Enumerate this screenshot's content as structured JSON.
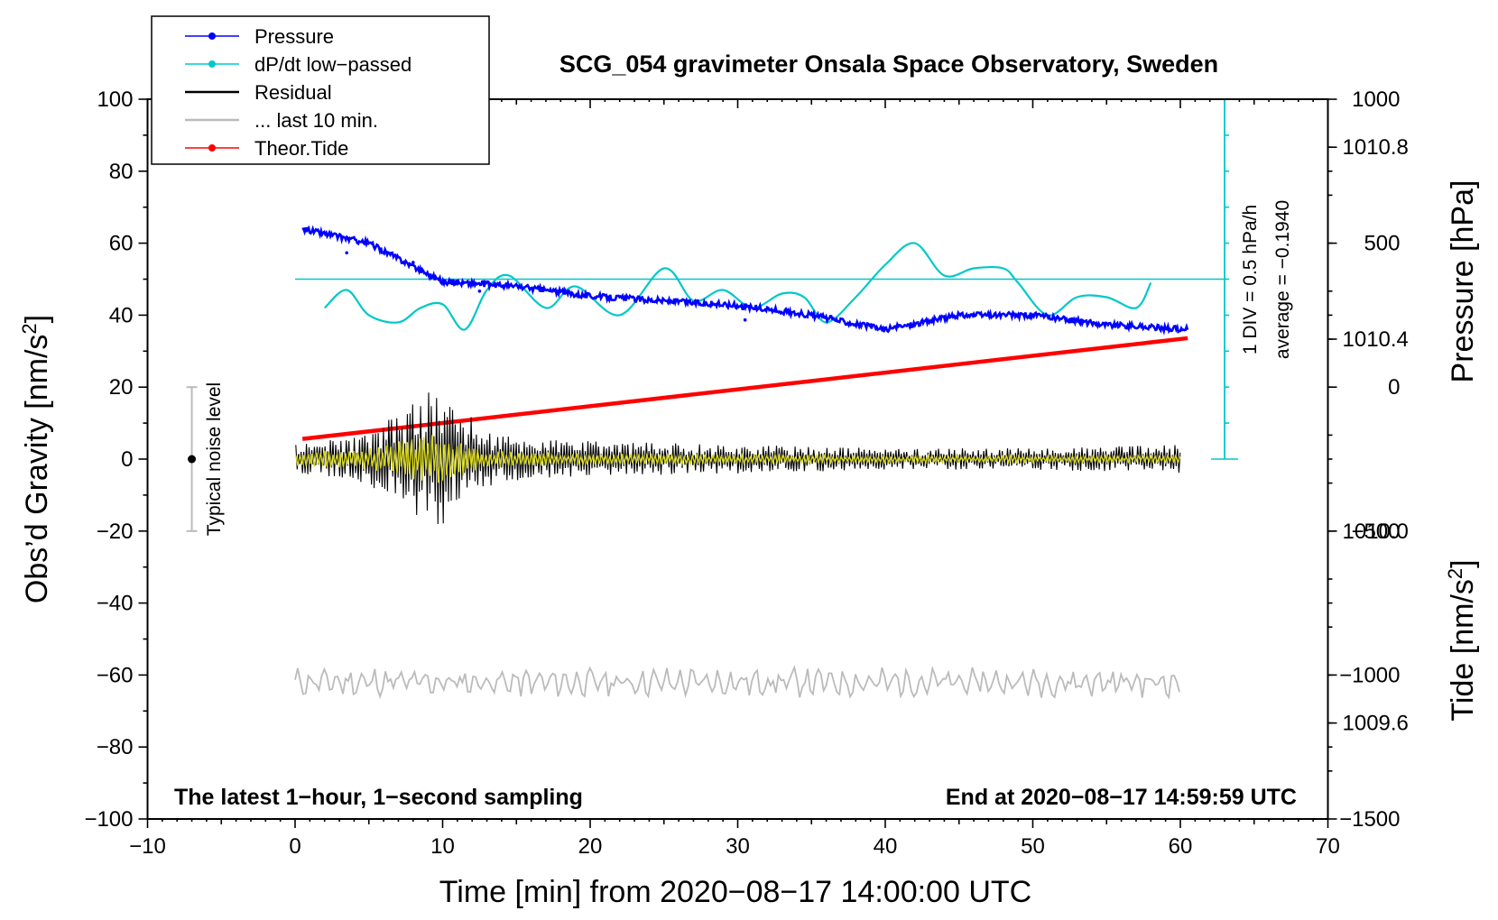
{
  "chart_data": {
    "type": "line",
    "title": "SCG_054 gravimeter Onsala Space Observatory, Sweden",
    "xlabel": "Time [min] from 2020−08−17 14:00:00 UTC",
    "ylabel_left": "Obs’d Gravity [nm/s",
    "ylabel_left_sup": "2",
    "ylabel_left_end": "]",
    "ylabel_right_pressure": "Pressure [hPa]",
    "ylabel_right_tide": "Tide [nm/s",
    "ylabel_right_tide_sup": "2",
    "ylabel_right_tide_end": "]",
    "xlim": [
      -10,
      70
    ],
    "ylim": [
      -100,
      100
    ],
    "x_ticks": [
      "−10",
      "0",
      "10",
      "20",
      "30",
      "40",
      "50",
      "60",
      "70"
    ],
    "y_ticks_left": [
      "100",
      "80",
      "60",
      "40",
      "20",
      "0",
      "−20",
      "−40",
      "−60",
      "−80",
      "−100"
    ],
    "pressure_axis": {
      "ylim": [
        1009.4,
        1010.9
      ],
      "ticks": [
        "1010.8",
        "1010.4",
        "1010.0",
        "1009.6"
      ]
    },
    "tide_axis": {
      "ylim": [
        -1500,
        1000
      ],
      "ticks": [
        "1000",
        "500",
        "0",
        "−500",
        "−1000",
        "−1500"
      ]
    },
    "legend": [
      {
        "name": "Pressure",
        "color": "#0000ff",
        "marker": true
      },
      {
        "name": "dP/dt low−passed",
        "color": "#00c8c8",
        "marker": true
      },
      {
        "name": "Residual",
        "color": "#000000",
        "marker": false
      },
      {
        "name": "... last 10 min.",
        "color": "#bbbbbb",
        "marker": false
      },
      {
        "name": "Theor.Tide",
        "color": "#ff0000",
        "marker": true
      }
    ],
    "series": [
      {
        "name": "Pressure",
        "axis": "pressure",
        "color": "#0000ff",
        "x": [
          0.5,
          5,
          10,
          15,
          20,
          25,
          30,
          35,
          40,
          45,
          50,
          55,
          60.5
        ],
        "values": [
          1010.63,
          1010.6,
          1010.52,
          1010.51,
          1010.49,
          1010.48,
          1010.47,
          1010.45,
          1010.42,
          1010.45,
          1010.45,
          1010.43,
          1010.42
        ]
      },
      {
        "name": "dP/dt low−passed",
        "axis": "gravity_scaled",
        "color": "#00c8c8",
        "x": [
          2,
          3.5,
          5,
          7,
          8.5,
          10,
          11.5,
          13,
          14.5,
          17,
          19,
          22,
          25,
          27,
          29,
          31,
          33,
          34.5,
          36,
          38,
          40,
          42,
          44,
          46,
          48,
          49,
          51,
          53,
          55,
          57,
          58
        ],
        "values": [
          42,
          47,
          40,
          38,
          42,
          43,
          36,
          47,
          51,
          42,
          48,
          40,
          53,
          44,
          47,
          42,
          46,
          45,
          38,
          45,
          54,
          60,
          51,
          53,
          53,
          49,
          40,
          45,
          45,
          42,
          49
        ]
      },
      {
        "name": "Residual",
        "axis": "gravity",
        "color": "#000000",
        "x": [
          0,
          5,
          8,
          9.5,
          11,
          13,
          15,
          20,
          30,
          40,
          50,
          60
        ],
        "amplitude": [
          4,
          7,
          16,
          20,
          15,
          8,
          6,
          5,
          4,
          3,
          3,
          4
        ]
      },
      {
        "name": "Residual (low-passed)",
        "axis": "gravity",
        "color": "#d8d818",
        "x": [
          0,
          5,
          8,
          9.5,
          11,
          13,
          20,
          40,
          60
        ],
        "amplitude": [
          2,
          3,
          6,
          7,
          5,
          2.5,
          1.5,
          1,
          1
        ]
      },
      {
        "name": "... last 10 min.",
        "axis": "gravity",
        "color": "#bbbbbb",
        "x_range": [
          0,
          60
        ],
        "center": -62,
        "amplitude": 4
      },
      {
        "name": "Theor.Tide",
        "axis": "tide",
        "color": "#ff0000",
        "x": [
          0.5,
          60.5
        ],
        "values": [
          -180,
          170
        ]
      }
    ],
    "reference_line": {
      "name": "average",
      "value": 50,
      "color": "#00c8c8"
    },
    "scale_bar": {
      "label": "1 DIV = 0.5 hPa/h",
      "average_label": "average = −0.1940",
      "x": 63,
      "y_from": 0,
      "y_to": 100,
      "divisions": 10
    },
    "noise_bar": {
      "label": "Typical noise level",
      "x": -7,
      "y_from": -20,
      "y_to": 20
    },
    "annotations": {
      "bottom_left": "The latest 1−hour, 1−second sampling",
      "bottom_right": "End at 2020−08−17 14:59:59 UTC"
    }
  }
}
